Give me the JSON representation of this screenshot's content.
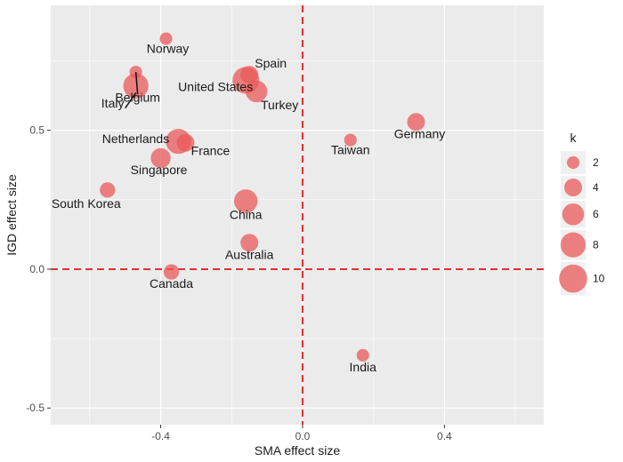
{
  "chart_data": {
    "type": "scatter",
    "xlabel": "SMA effect size",
    "ylabel": "IGD effect size",
    "xlim": [
      -0.71,
      0.68
    ],
    "ylim": [
      -0.56,
      0.95
    ],
    "xticks": [
      {
        "v": -0.4,
        "label": "-0.4"
      },
      {
        "v": 0.0,
        "label": "0.0"
      },
      {
        "v": 0.4,
        "label": "0.4"
      }
    ],
    "yticks": [
      {
        "v": -0.5,
        "label": "-0.5"
      },
      {
        "v": 0.0,
        "label": "0.0"
      },
      {
        "v": 0.5,
        "label": "0.5"
      }
    ],
    "reference_lines": {
      "x": 0,
      "y": 0,
      "color": "#e03131",
      "style": "dashed"
    },
    "point_color": "#ea5a5a",
    "grid": true,
    "legend": {
      "title": "k",
      "placement": "right",
      "entries": [
        2,
        4,
        6,
        8,
        10
      ]
    },
    "points": [
      {
        "label": "Norway",
        "x": -0.385,
        "y": 0.83,
        "k": 2
      },
      {
        "label": "Italy",
        "x": -0.47,
        "y": 0.71,
        "k": 2
      },
      {
        "label": "Belgium",
        "x": -0.47,
        "y": 0.66,
        "k": 8
      },
      {
        "label": "Spain",
        "x": -0.15,
        "y": 0.7,
        "k": 4
      },
      {
        "label": "United States",
        "x": -0.16,
        "y": 0.68,
        "k": 9
      },
      {
        "label": "Turkey",
        "x": -0.13,
        "y": 0.64,
        "k": 6
      },
      {
        "label": "Netherlands",
        "x": -0.35,
        "y": 0.46,
        "k": 8
      },
      {
        "label": "France",
        "x": -0.33,
        "y": 0.455,
        "k": 4
      },
      {
        "label": "Singapore",
        "x": -0.4,
        "y": 0.4,
        "k": 5
      },
      {
        "label": "South Korea",
        "x": -0.55,
        "y": 0.285,
        "k": 3
      },
      {
        "label": "China",
        "x": -0.16,
        "y": 0.245,
        "k": 7
      },
      {
        "label": "Australia",
        "x": -0.15,
        "y": 0.095,
        "k": 4
      },
      {
        "label": "Canada",
        "x": -0.37,
        "y": -0.01,
        "k": 3
      },
      {
        "label": "Taiwan",
        "x": 0.135,
        "y": 0.465,
        "k": 2
      },
      {
        "label": "Germany",
        "x": 0.32,
        "y": 0.53,
        "k": 4
      },
      {
        "label": "India",
        "x": 0.17,
        "y": -0.31,
        "k": 2
      }
    ]
  }
}
